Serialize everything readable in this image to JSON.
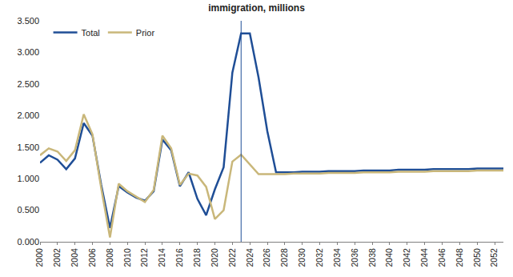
{
  "chart_data": {
    "type": "line",
    "title": "immigration, millions",
    "x": [
      2000,
      2001,
      2002,
      2003,
      2004,
      2005,
      2006,
      2007,
      2008,
      2009,
      2010,
      2011,
      2012,
      2013,
      2014,
      2015,
      2016,
      2017,
      2018,
      2019,
      2020,
      2021,
      2022,
      2023,
      2024,
      2025,
      2026,
      2027,
      2028,
      2029,
      2030,
      2031,
      2032,
      2033,
      2034,
      2035,
      2036,
      2037,
      2038,
      2039,
      2040,
      2041,
      2042,
      2043,
      2044,
      2045,
      2046,
      2047,
      2048,
      2049,
      2050,
      2051,
      2052,
      2053
    ],
    "series": [
      {
        "name": "Total",
        "color": "#1f4e96",
        "values": [
          1.25,
          1.37,
          1.3,
          1.15,
          1.32,
          1.88,
          1.68,
          0.9,
          0.22,
          0.88,
          0.78,
          0.7,
          0.65,
          0.8,
          1.62,
          1.45,
          0.88,
          1.1,
          0.68,
          0.42,
          0.83,
          1.18,
          2.68,
          3.3,
          3.3,
          2.6,
          1.75,
          1.1,
          1.1,
          1.1,
          1.11,
          1.11,
          1.11,
          1.12,
          1.12,
          1.12,
          1.12,
          1.13,
          1.13,
          1.13,
          1.13,
          1.14,
          1.14,
          1.14,
          1.14,
          1.15,
          1.15,
          1.15,
          1.15,
          1.15,
          1.16,
          1.16,
          1.16,
          1.16
        ]
      },
      {
        "name": "Prior",
        "color": "#c9b77a",
        "values": [
          1.37,
          1.48,
          1.43,
          1.28,
          1.45,
          2.02,
          1.7,
          0.85,
          0.07,
          0.92,
          0.8,
          0.71,
          0.63,
          0.82,
          1.68,
          1.48,
          0.9,
          1.08,
          1.05,
          0.87,
          0.36,
          0.5,
          1.27,
          1.38,
          1.22,
          1.07,
          1.07,
          1.07,
          1.07,
          1.08,
          1.08,
          1.08,
          1.08,
          1.09,
          1.09,
          1.09,
          1.09,
          1.1,
          1.1,
          1.1,
          1.1,
          1.11,
          1.11,
          1.11,
          1.11,
          1.12,
          1.12,
          1.12,
          1.12,
          1.12,
          1.13,
          1.13,
          1.13,
          1.13
        ]
      }
    ],
    "vlines": [
      2023
    ],
    "xlim": [
      2000,
      2053
    ],
    "xticks": [
      2000,
      2002,
      2004,
      2006,
      2008,
      2010,
      2012,
      2014,
      2016,
      2018,
      2020,
      2022,
      2024,
      2026,
      2028,
      2030,
      2032,
      2034,
      2036,
      2038,
      2040,
      2042,
      2044,
      2046,
      2048,
      2050,
      2052
    ],
    "ylim": [
      0,
      3.5
    ],
    "yticks": [
      {
        "value": 0,
        "label": "0.000"
      },
      {
        "value": 0.5,
        "label": "0.500"
      },
      {
        "value": 1,
        "label": "1.000"
      },
      {
        "value": 1.5,
        "label": "1.500"
      },
      {
        "value": 2,
        "label": "2.000"
      },
      {
        "value": 2.5,
        "label": "2.500"
      },
      {
        "value": 3,
        "label": "3.000"
      },
      {
        "value": 3.5,
        "label": "3.500"
      }
    ],
    "grid": false,
    "legend": "top left"
  }
}
